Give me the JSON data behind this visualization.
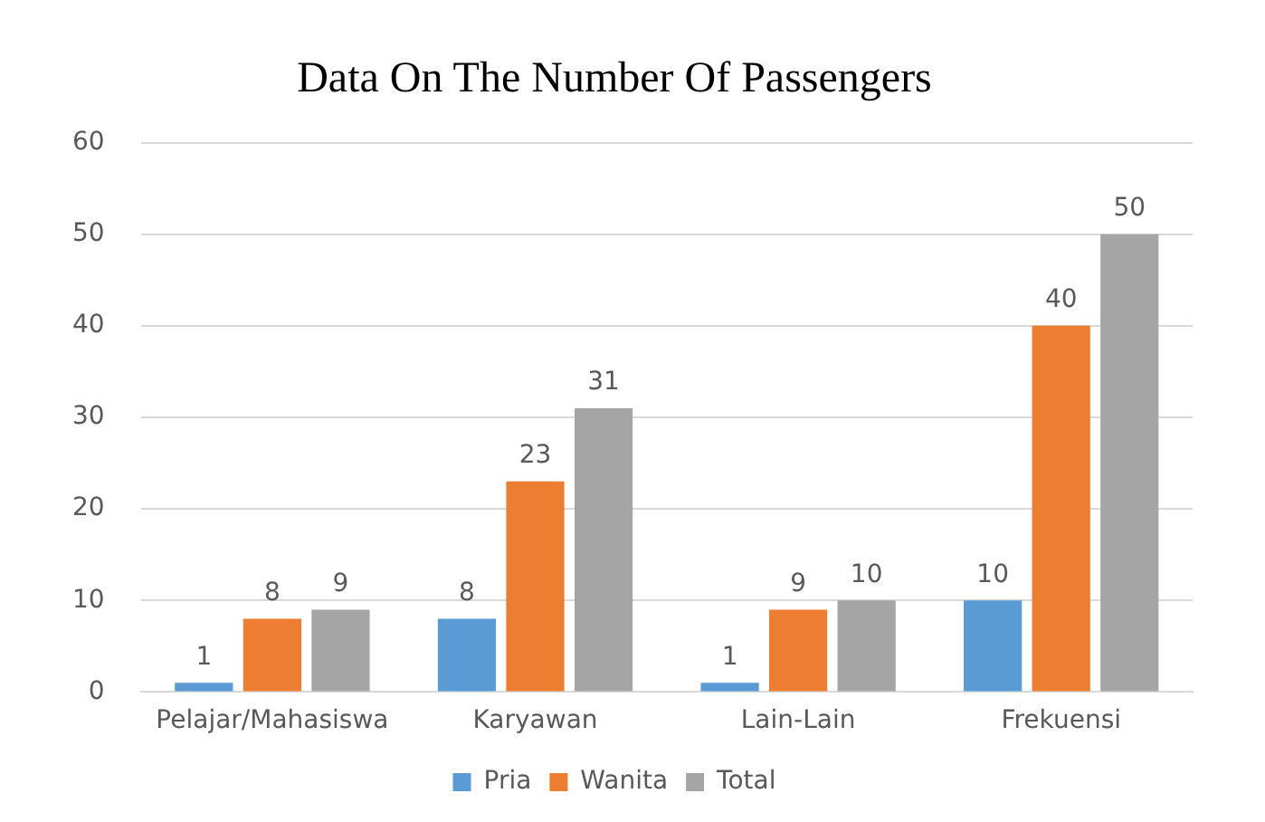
{
  "chart_data": {
    "type": "bar",
    "title": "Data On The Number Of Passengers",
    "categories": [
      "Pelajar/Mahasiswa",
      "Karyawan",
      "Lain-Lain",
      "Frekuensi"
    ],
    "series": [
      {
        "name": "Pria",
        "color": "#5b9bd5",
        "values": [
          1,
          8,
          1,
          10
        ]
      },
      {
        "name": "Wanita",
        "color": "#ed7d31",
        "values": [
          8,
          23,
          9,
          40
        ]
      },
      {
        "name": "Total",
        "color": "#a5a5a5",
        "values": [
          9,
          31,
          10,
          50
        ]
      }
    ],
    "ylim": [
      0,
      60
    ],
    "yticks": [
      0,
      10,
      20,
      30,
      40,
      50,
      60
    ],
    "grid": "y",
    "legend": "bottom",
    "data_labels": true
  }
}
